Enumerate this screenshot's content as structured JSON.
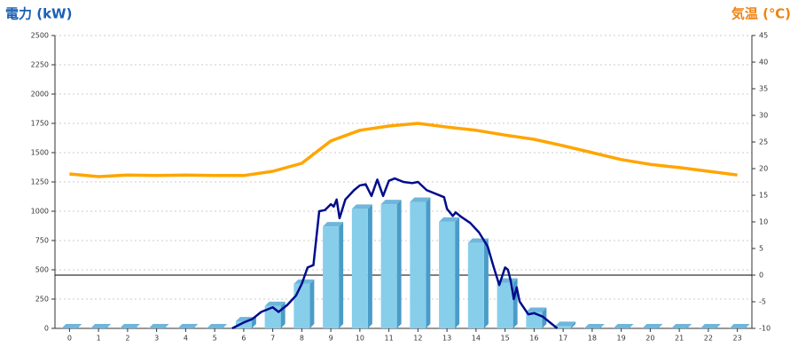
{
  "chart_data": {
    "type": "combo",
    "ylabel": "電力 (kW)",
    "y2label": "気温 (℃)",
    "ylabel_color": "#1a5fb4",
    "y2label_color": "#f0820f",
    "categories": [
      "0",
      "1",
      "2",
      "3",
      "4",
      "5",
      "6",
      "7",
      "8",
      "9",
      "10",
      "11",
      "12",
      "13",
      "14",
      "15",
      "16",
      "17",
      "18",
      "19",
      "20",
      "21",
      "22",
      "23"
    ],
    "xlim": [
      -0.5,
      23.5
    ],
    "ylim": [
      0,
      2500
    ],
    "yticks": [
      0,
      250,
      500,
      750,
      1000,
      1250,
      1500,
      1750,
      2000,
      2250,
      2500
    ],
    "y2lim": [
      -10,
      45
    ],
    "y2ticks": [
      -10,
      -5,
      0,
      5,
      10,
      15,
      20,
      25,
      30,
      35,
      40,
      45
    ],
    "y2_reference": 0,
    "grid": true,
    "series": [
      {
        "type": "bar",
        "color": "#87ceeb",
        "values": [
          0,
          0,
          0,
          0,
          0,
          0,
          60,
          190,
          380,
          870,
          1020,
          1060,
          1080,
          910,
          730,
          390,
          140,
          20,
          0,
          0,
          0,
          0,
          0,
          0
        ]
      },
      {
        "type": "line",
        "color": "#000c8c",
        "x": [
          5.6,
          6.0,
          6.3,
          6.6,
          7.0,
          7.2,
          7.5,
          7.8,
          8.0,
          8.2,
          8.4,
          8.6,
          8.8,
          9.0,
          9.1,
          9.2,
          9.3,
          9.5,
          9.8,
          10.0,
          10.2,
          10.4,
          10.6,
          10.8,
          11.0,
          11.2,
          11.5,
          11.8,
          12.0,
          12.3,
          12.6,
          12.9,
          13.0,
          13.2,
          13.3,
          13.5,
          13.8,
          14.1,
          14.4,
          14.6,
          14.8,
          15.0,
          15.1,
          15.2,
          15.3,
          15.4,
          15.5,
          15.8,
          16.0,
          16.3,
          16.6,
          16.8
        ],
        "values": [
          0,
          50,
          80,
          140,
          180,
          140,
          200,
          280,
          380,
          520,
          540,
          1000,
          1010,
          1060,
          1040,
          1100,
          940,
          1100,
          1180,
          1220,
          1230,
          1130,
          1270,
          1130,
          1260,
          1280,
          1250,
          1240,
          1250,
          1180,
          1150,
          1120,
          1020,
          960,
          990,
          950,
          900,
          820,
          700,
          530,
          370,
          520,
          500,
          400,
          250,
          350,
          230,
          120,
          130,
          100,
          40,
          0
        ]
      },
      {
        "type": "line",
        "axis": "y2",
        "color": "#ffa500",
        "values": [
          19.0,
          18.5,
          18.8,
          18.7,
          18.8,
          18.7,
          18.7,
          19.5,
          21.0,
          25.2,
          27.2,
          28.0,
          28.5,
          27.8,
          27.2,
          26.3,
          25.5,
          24.3,
          23.0,
          21.7,
          20.8,
          20.2,
          19.5,
          18.8
        ]
      }
    ]
  }
}
